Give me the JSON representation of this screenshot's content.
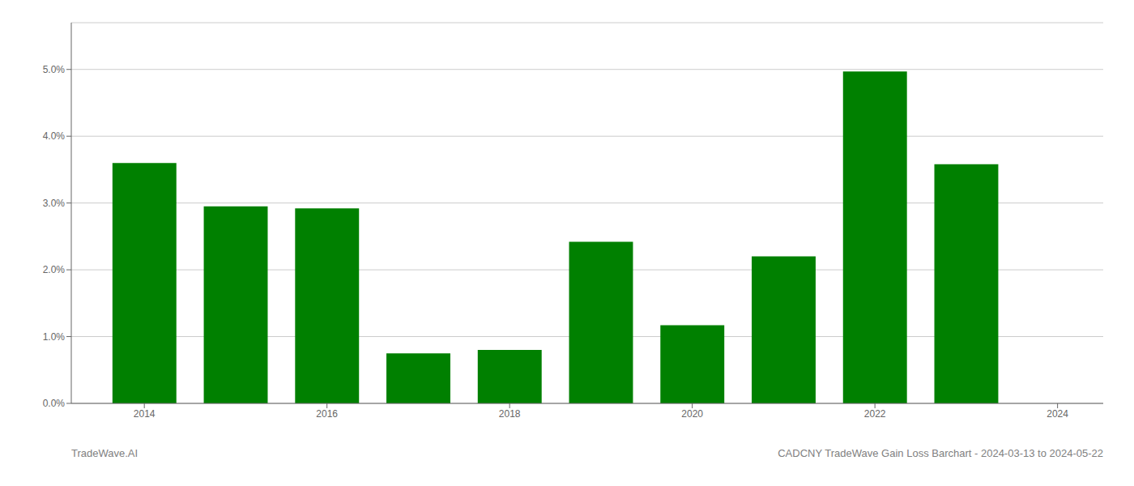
{
  "chart_data": {
    "type": "bar",
    "x": [
      2014,
      2015,
      2016,
      2017,
      2018,
      2019,
      2020,
      2021,
      2022,
      2023
    ],
    "values": [
      0.036,
      0.0295,
      0.0292,
      0.0075,
      0.008,
      0.0242,
      0.0117,
      0.022,
      0.0497,
      0.0358
    ],
    "color": "#008000",
    "xlim": [
      2013.2,
      2024.5
    ],
    "xticks": [
      2014,
      2016,
      2018,
      2020,
      2022,
      2024
    ],
    "ylim": [
      0.0,
      0.057
    ],
    "yticks": [
      {
        "value": 0.0,
        "label": "0.0%"
      },
      {
        "value": 0.01,
        "label": "1.0%"
      },
      {
        "value": 0.02,
        "label": "2.0%"
      },
      {
        "value": 0.03,
        "label": "3.0%"
      },
      {
        "value": 0.04,
        "label": "4.0%"
      },
      {
        "value": 0.05,
        "label": "5.0%"
      }
    ],
    "grid": true,
    "annotations": [
      "TradeWave.AI",
      "CADCNY TradeWave Gain Loss Barchart - 2024-03-13 to 2024-05-22"
    ]
  }
}
